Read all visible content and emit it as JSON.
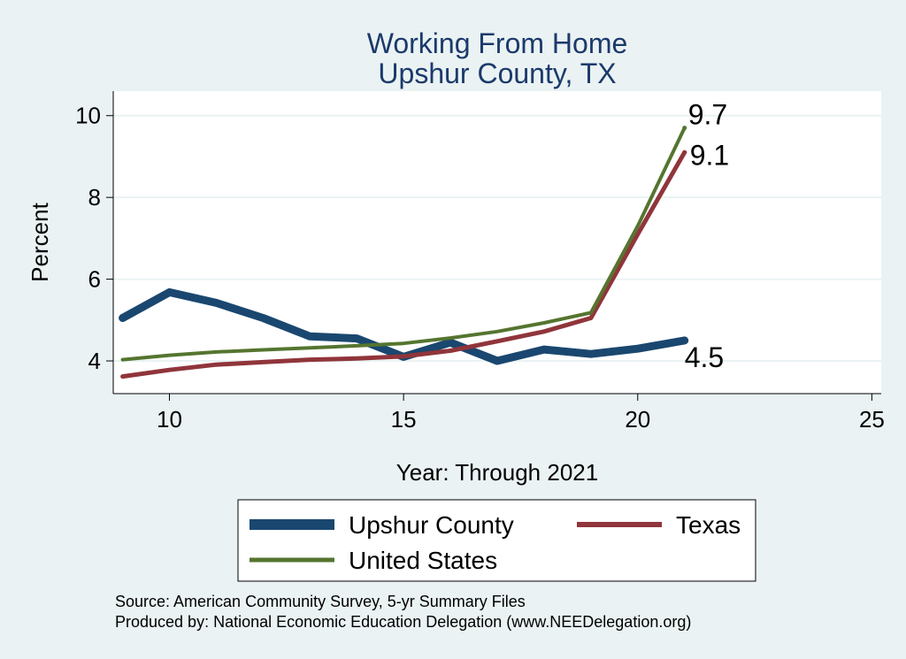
{
  "chart_data": {
    "type": "line",
    "title": [
      "Working From Home",
      "Upshur County, TX"
    ],
    "xlabel": "Year: Through 2021",
    "ylabel": "Percent",
    "xlim": [
      8.8,
      25.2
    ],
    "ylim": [
      3.2,
      10.6
    ],
    "xticks": [
      10,
      15,
      20,
      25
    ],
    "yticks": [
      4,
      6,
      8,
      10
    ],
    "grid": true,
    "x": [
      9,
      10,
      11,
      12,
      13,
      14,
      15,
      16,
      17,
      18,
      19,
      20,
      21
    ],
    "series": [
      {
        "name": "Upshur County",
        "color": "#1a476f",
        "values": [
          5.05,
          5.68,
          5.42,
          5.05,
          4.6,
          4.55,
          4.1,
          4.45,
          4.0,
          4.28,
          4.17,
          4.3,
          4.5
        ],
        "end_label": "4.5"
      },
      {
        "name": "Texas",
        "color": "#90353b",
        "values": [
          3.62,
          3.78,
          3.91,
          3.97,
          4.03,
          4.06,
          4.11,
          4.25,
          4.48,
          4.72,
          5.05,
          7.1,
          9.1
        ],
        "end_label": "9.1"
      },
      {
        "name": "United States",
        "color": "#55752f",
        "values": [
          4.03,
          4.14,
          4.22,
          4.27,
          4.32,
          4.37,
          4.43,
          4.56,
          4.72,
          4.93,
          5.18,
          7.3,
          9.7
        ],
        "end_label": "9.7"
      }
    ]
  },
  "source_note": "Source: American Community Survey, 5-yr Summary Files",
  "producer_note": "Produced by: National Economic Education Delegation (www.NEEDelegation.org)"
}
